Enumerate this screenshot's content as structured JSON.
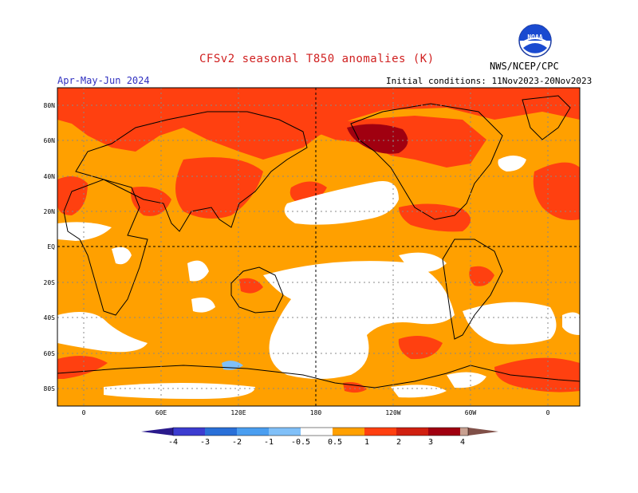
{
  "header": {
    "title": "CFSv2 seasonal T850 anomalies (K)",
    "period": "Apr-May-Jun 2024",
    "initial_conditions": "Initial conditions: 11Nov2023-20Nov2023",
    "agency": "NWS/NCEP/CPC",
    "logo_text": "NOAA"
  },
  "map": {
    "lat_labels": [
      "80N",
      "60N",
      "40N",
      "20N",
      "EQ",
      "20S",
      "40S",
      "60S",
      "80S"
    ],
    "lon_labels": [
      "0",
      "60E",
      "120E",
      "180",
      "120W",
      "60W",
      "0"
    ]
  },
  "colorbar": {
    "tick_labels": [
      "-4",
      "-3",
      "-2",
      "-1",
      "-0.5",
      "0.5",
      "1",
      "2",
      "3",
      "4"
    ],
    "colors": [
      "#2a1a8c",
      "#3c3cd0",
      "#2a70d8",
      "#4a9ef0",
      "#80c0f8",
      "#ffffff",
      "#ffa000",
      "#ff4010",
      "#d02010",
      "#a00010",
      "#c8a090",
      "#805048"
    ]
  }
}
